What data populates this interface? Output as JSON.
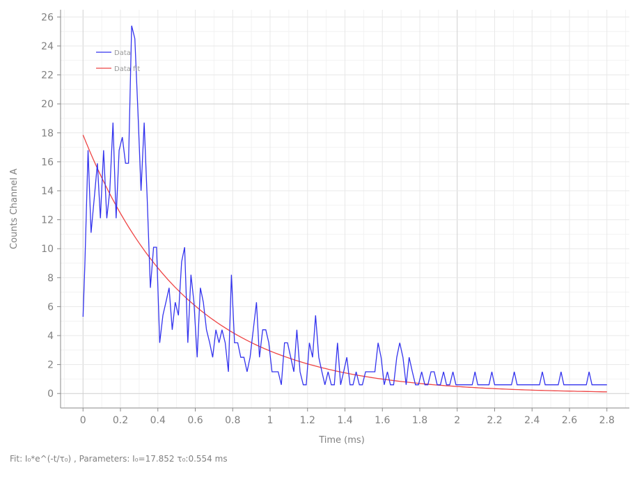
{
  "chart_data": {
    "type": "line",
    "xlabel": "Time (ms)",
    "ylabel": "Counts Channel A",
    "xlim": [
      -0.12,
      2.92
    ],
    "ylim": [
      -1.0,
      26.5
    ],
    "x_ticks": [
      "0",
      "0.2",
      "0.4",
      "0.6",
      "0.8",
      "1",
      "1.2",
      "1.4",
      "1.6",
      "1.8",
      "2",
      "2.2",
      "2.4",
      "2.6",
      "2.8"
    ],
    "y_ticks": [
      "0",
      "2",
      "4",
      "6",
      "8",
      "10",
      "12",
      "14",
      "16",
      "18",
      "20",
      "22",
      "24",
      "26"
    ],
    "grid": true,
    "legend_position": "top-left",
    "series": [
      {
        "name": "Data",
        "color": "#3333ee",
        "points": [
          [
            0.0,
            5.3
          ],
          [
            0.01,
            8.9
          ],
          [
            0.027,
            16.8
          ],
          [
            0.043,
            11.1
          ],
          [
            0.06,
            13.5
          ],
          [
            0.077,
            15.9
          ],
          [
            0.093,
            12.1
          ],
          [
            0.11,
            16.8
          ],
          [
            0.127,
            12.1
          ],
          [
            0.143,
            14.0
          ],
          [
            0.16,
            18.7
          ],
          [
            0.177,
            12.1
          ],
          [
            0.193,
            16.8
          ],
          [
            0.21,
            17.7
          ],
          [
            0.227,
            15.9
          ],
          [
            0.243,
            15.9
          ],
          [
            0.26,
            25.4
          ],
          [
            0.277,
            24.5
          ],
          [
            0.293,
            19.6
          ],
          [
            0.31,
            14.0
          ],
          [
            0.327,
            18.7
          ],
          [
            0.343,
            13.5
          ],
          [
            0.36,
            7.3
          ],
          [
            0.377,
            10.1
          ],
          [
            0.393,
            10.1
          ],
          [
            0.41,
            3.5
          ],
          [
            0.427,
            5.4
          ],
          [
            0.443,
            6.3
          ],
          [
            0.46,
            7.3
          ],
          [
            0.477,
            4.4
          ],
          [
            0.493,
            6.3
          ],
          [
            0.51,
            5.4
          ],
          [
            0.527,
            9.1
          ],
          [
            0.543,
            10.1
          ],
          [
            0.56,
            3.5
          ],
          [
            0.577,
            8.2
          ],
          [
            0.593,
            6.3
          ],
          [
            0.61,
            2.5
          ],
          [
            0.627,
            7.3
          ],
          [
            0.643,
            6.3
          ],
          [
            0.66,
            4.4
          ],
          [
            0.677,
            3.5
          ],
          [
            0.693,
            2.5
          ],
          [
            0.71,
            4.4
          ],
          [
            0.727,
            3.5
          ],
          [
            0.743,
            4.4
          ],
          [
            0.76,
            3.5
          ],
          [
            0.777,
            1.5
          ],
          [
            0.793,
            8.2
          ],
          [
            0.81,
            3.5
          ],
          [
            0.827,
            3.5
          ],
          [
            0.843,
            2.5
          ],
          [
            0.86,
            2.5
          ],
          [
            0.877,
            1.5
          ],
          [
            0.893,
            2.5
          ],
          [
            0.91,
            4.4
          ],
          [
            0.927,
            6.3
          ],
          [
            0.943,
            2.5
          ],
          [
            0.96,
            4.4
          ],
          [
            0.977,
            4.4
          ],
          [
            0.993,
            3.5
          ],
          [
            1.01,
            1.5
          ],
          [
            1.027,
            1.5
          ],
          [
            1.043,
            1.5
          ],
          [
            1.06,
            0.6
          ],
          [
            1.077,
            3.5
          ],
          [
            1.093,
            3.5
          ],
          [
            1.11,
            2.5
          ],
          [
            1.127,
            1.5
          ],
          [
            1.143,
            4.4
          ],
          [
            1.16,
            1.5
          ],
          [
            1.177,
            0.6
          ],
          [
            1.193,
            0.6
          ],
          [
            1.21,
            3.5
          ],
          [
            1.227,
            2.5
          ],
          [
            1.243,
            5.4
          ],
          [
            1.26,
            2.5
          ],
          [
            1.277,
            1.5
          ],
          [
            1.293,
            0.6
          ],
          [
            1.31,
            1.5
          ],
          [
            1.327,
            0.6
          ],
          [
            1.343,
            0.6
          ],
          [
            1.36,
            3.5
          ],
          [
            1.377,
            0.6
          ],
          [
            1.393,
            1.5
          ],
          [
            1.41,
            2.5
          ],
          [
            1.427,
            0.6
          ],
          [
            1.443,
            0.6
          ],
          [
            1.46,
            1.5
          ],
          [
            1.477,
            0.6
          ],
          [
            1.493,
            0.6
          ],
          [
            1.51,
            1.5
          ],
          [
            1.527,
            1.5
          ],
          [
            1.543,
            1.5
          ],
          [
            1.56,
            1.5
          ],
          [
            1.577,
            3.5
          ],
          [
            1.593,
            2.5
          ],
          [
            1.61,
            0.6
          ],
          [
            1.627,
            1.5
          ],
          [
            1.643,
            0.6
          ],
          [
            1.66,
            0.6
          ],
          [
            1.677,
            2.5
          ],
          [
            1.693,
            3.5
          ],
          [
            1.71,
            2.5
          ],
          [
            1.727,
            0.6
          ],
          [
            1.743,
            2.5
          ],
          [
            1.76,
            1.5
          ],
          [
            1.777,
            0.6
          ],
          [
            1.793,
            0.6
          ],
          [
            1.81,
            1.5
          ],
          [
            1.827,
            0.6
          ],
          [
            1.843,
            0.6
          ],
          [
            1.86,
            1.5
          ],
          [
            1.877,
            1.5
          ],
          [
            1.893,
            0.6
          ],
          [
            1.91,
            0.6
          ],
          [
            1.927,
            1.5
          ],
          [
            1.943,
            0.6
          ],
          [
            1.96,
            0.6
          ],
          [
            1.977,
            1.5
          ],
          [
            1.993,
            0.6
          ],
          [
            2.05,
            0.6
          ],
          [
            2.08,
            0.6
          ],
          [
            2.095,
            1.5
          ],
          [
            2.11,
            0.6
          ],
          [
            2.17,
            0.6
          ],
          [
            2.185,
            1.5
          ],
          [
            2.2,
            0.6
          ],
          [
            2.29,
            0.6
          ],
          [
            2.305,
            1.5
          ],
          [
            2.32,
            0.6
          ],
          [
            2.44,
            0.6
          ],
          [
            2.455,
            1.5
          ],
          [
            2.47,
            0.6
          ],
          [
            2.54,
            0.6
          ],
          [
            2.555,
            1.5
          ],
          [
            2.57,
            0.6
          ],
          [
            2.69,
            0.6
          ],
          [
            2.705,
            1.5
          ],
          [
            2.72,
            0.6
          ],
          [
            2.8,
            0.6
          ]
        ]
      },
      {
        "name": "Data fit",
        "color": "#ee4444",
        "model": {
          "I0": 17.852,
          "tau": 0.554,
          "offset": 0.0,
          "x_start": 0.0,
          "x_end": 2.8
        }
      }
    ]
  },
  "fit_text": "Fit: I₀*e^(-t/τ₀) , Parameters: I₀=17.852 τ₀:0.554 ms"
}
